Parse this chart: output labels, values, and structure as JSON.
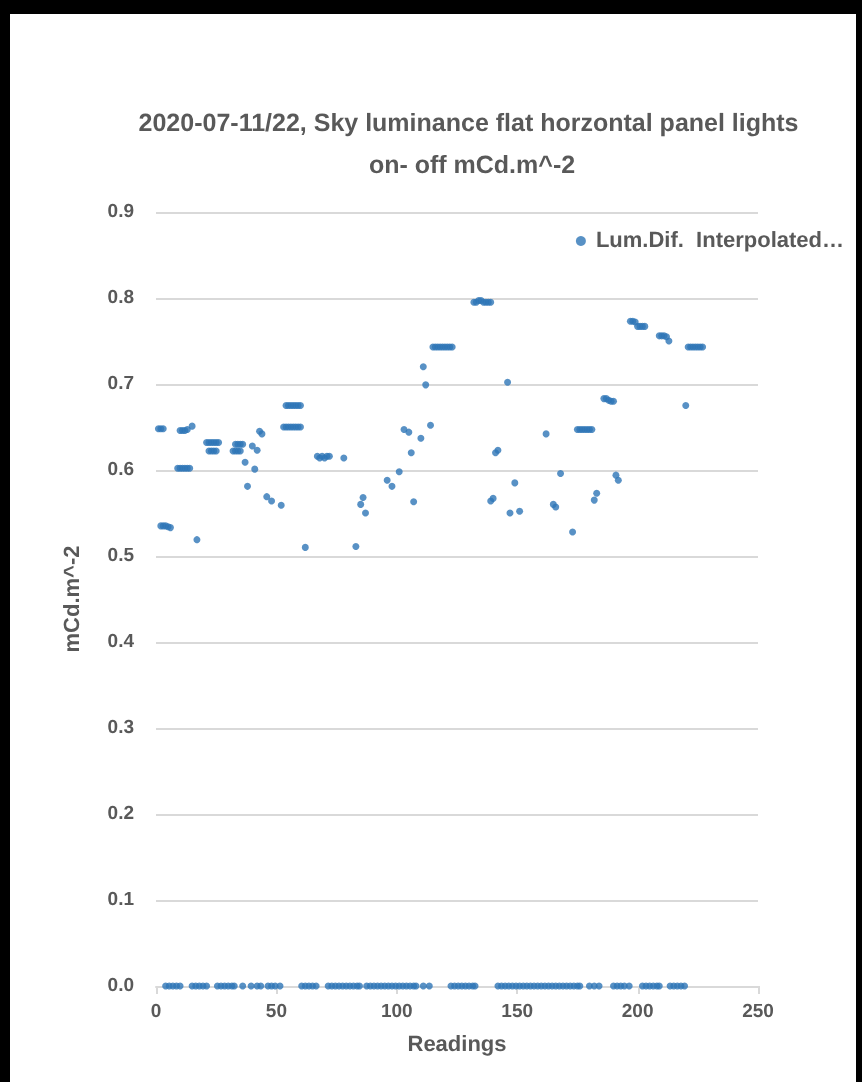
{
  "chart_data": {
    "type": "scatter",
    "title": "2020-07-11/22, Sky luminance flat horzontal panel lights on- off mCd.m^-2",
    "xlabel": "Readings",
    "ylabel": "mCd.m^-2",
    "x": [
      1,
      2,
      3,
      2,
      3,
      4,
      5,
      6,
      9,
      10,
      11,
      12,
      13,
      14,
      10,
      11,
      12,
      13,
      15,
      17,
      21,
      22,
      23,
      24,
      25,
      26,
      22,
      23,
      24,
      25,
      32,
      33,
      34,
      35,
      33,
      34,
      35,
      36,
      37,
      38,
      40,
      41,
      42,
      43,
      44,
      46,
      48,
      52,
      53,
      54,
      55,
      56,
      57,
      58,
      59,
      60,
      54,
      55,
      56,
      57,
      58,
      59,
      60,
      62,
      67,
      68,
      69,
      70,
      71,
      72,
      78,
      83,
      85,
      86,
      87,
      96,
      98,
      101,
      103,
      105,
      106,
      107,
      110,
      111,
      112,
      114,
      115,
      116,
      117,
      118,
      119,
      120,
      121,
      122,
      123,
      132,
      133,
      134,
      135,
      136,
      137,
      138,
      139,
      139,
      140,
      141,
      142,
      146,
      147,
      149,
      151,
      162,
      165,
      166,
      168,
      173,
      175,
      176,
      177,
      178,
      179,
      180,
      181,
      182,
      183,
      186,
      187,
      188,
      189,
      190,
      191,
      192,
      197,
      198,
      199,
      200,
      201,
      202,
      203,
      209,
      210,
      211,
      212,
      213,
      220,
      221,
      222,
      223,
      224,
      225,
      226,
      227,
      4,
      5.5,
      7,
      8.5,
      10,
      15,
      16.5,
      18,
      19.5,
      21,
      25.5,
      27,
      28.5,
      30,
      31.5,
      32.5,
      36,
      39.5,
      42,
      43.5,
      46.5,
      48,
      49.5,
      51.5,
      60.5,
      62,
      63.5,
      65,
      66.5,
      71.5,
      73,
      74.5,
      76,
      77.5,
      79,
      80.5,
      82,
      83.5,
      84.5,
      87.5,
      89,
      90.5,
      92,
      93.5,
      95,
      96.5,
      98,
      99.5,
      101,
      102.5,
      104,
      105.5,
      107,
      108,
      111,
      113.5,
      122.5,
      124,
      125.5,
      127,
      128.5,
      130,
      131.5,
      132.5,
      142,
      143.5,
      145,
      146.5,
      148,
      149.5,
      151,
      152.5,
      154,
      155.5,
      157,
      158.5,
      160,
      161.5,
      163,
      164.5,
      166,
      167.5,
      169,
      170.5,
      172,
      173.5,
      175,
      176,
      180,
      182,
      184,
      190,
      191.5,
      193,
      194.5,
      196.5,
      202,
      203.5,
      205,
      206.5,
      208,
      209,
      213.5,
      215,
      216.5,
      218,
      219.5
    ],
    "series": [
      {
        "name": "Lum.Dif.  Interpolated…",
        "color": "#2e75b6",
        "values": [
          0.648,
          0.648,
          0.648,
          0.535,
          0.535,
          0.535,
          0.534,
          0.533,
          0.602,
          0.602,
          0.602,
          0.602,
          0.602,
          0.602,
          0.646,
          0.646,
          0.646,
          0.647,
          0.651,
          0.519,
          0.632,
          0.632,
          0.632,
          0.632,
          0.632,
          0.632,
          0.622,
          0.622,
          0.622,
          0.622,
          0.622,
          0.622,
          0.622,
          0.622,
          0.63,
          0.63,
          0.63,
          0.63,
          0.609,
          0.581,
          0.628,
          0.601,
          0.623,
          0.645,
          0.642,
          0.569,
          0.564,
          0.559,
          0.65,
          0.65,
          0.65,
          0.65,
          0.65,
          0.65,
          0.65,
          0.65,
          0.675,
          0.675,
          0.675,
          0.675,
          0.675,
          0.675,
          0.675,
          0.51,
          0.616,
          0.614,
          0.616,
          0.614,
          0.616,
          0.616,
          0.614,
          0.511,
          0.56,
          0.568,
          0.55,
          0.588,
          0.581,
          0.598,
          0.647,
          0.644,
          0.62,
          0.563,
          0.637,
          0.72,
          0.699,
          0.652,
          0.743,
          0.743,
          0.743,
          0.743,
          0.743,
          0.743,
          0.743,
          0.743,
          0.743,
          0.795,
          0.795,
          0.797,
          0.797,
          0.795,
          0.795,
          0.795,
          0.795,
          0.564,
          0.567,
          0.62,
          0.623,
          0.702,
          0.55,
          0.585,
          0.552,
          0.642,
          0.56,
          0.557,
          0.596,
          0.528,
          0.647,
          0.647,
          0.647,
          0.647,
          0.647,
          0.647,
          0.647,
          0.565,
          0.573,
          0.683,
          0.683,
          0.681,
          0.68,
          0.68,
          0.594,
          0.588,
          0.773,
          0.773,
          0.772,
          0.767,
          0.767,
          0.767,
          0.767,
          0.756,
          0.756,
          0.756,
          0.755,
          0.75,
          0.675,
          0.743,
          0.743,
          0.743,
          0.743,
          0.743,
          0.743,
          0.743,
          0,
          0,
          0,
          0,
          0,
          0,
          0,
          0,
          0,
          0,
          0,
          0,
          0,
          0,
          0,
          0,
          0,
          0,
          0,
          0,
          0,
          0,
          0,
          0,
          0,
          0,
          0,
          0,
          0,
          0,
          0,
          0,
          0,
          0,
          0,
          0,
          0,
          0,
          0,
          0,
          0,
          0,
          0,
          0,
          0,
          0,
          0,
          0,
          0,
          0,
          0,
          0,
          0,
          0,
          0,
          0,
          0,
          0,
          0,
          0,
          0,
          0,
          0,
          0,
          0,
          0,
          0,
          0,
          0,
          0,
          0,
          0,
          0,
          0,
          0,
          0,
          0,
          0,
          0,
          0,
          0,
          0,
          0,
          0,
          0,
          0,
          0,
          0,
          0,
          0,
          0,
          0,
          0,
          0,
          0,
          0,
          0,
          0,
          0,
          0,
          0,
          0,
          0,
          0,
          0,
          0,
          0
        ]
      }
    ],
    "xlim": [
      0,
      250
    ],
    "xticks": [
      0,
      50,
      100,
      150,
      200,
      250
    ],
    "ylim": [
      0,
      0.9
    ],
    "yticks": [
      {
        "value": 0,
        "label": "0.0"
      },
      0.1,
      0.2,
      0.3,
      0.4,
      0.5,
      0.6,
      0.7,
      0.8,
      0.9
    ],
    "grid": "y",
    "legend": "top right",
    "marker": "circle"
  }
}
